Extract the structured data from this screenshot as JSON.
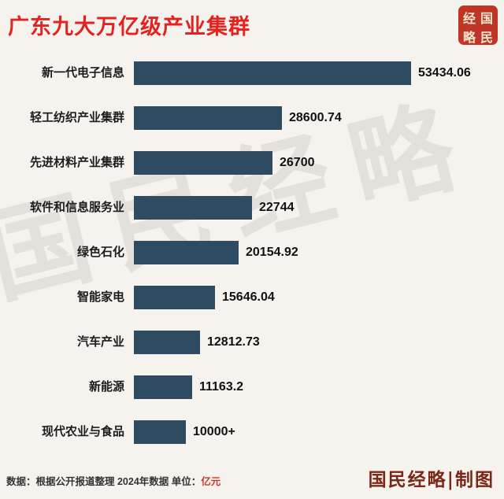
{
  "page": {
    "title": "广东九大万亿级产业集群",
    "watermark": "国民经略",
    "seal_chars": [
      "经",
      "国",
      "略",
      "民"
    ],
    "footnote_prefix": "数据：根据公开报道整理 2024年数据 单位：",
    "footnote_unit": "亿元",
    "credit": "国民经略|制图"
  },
  "colors": {
    "background": "#f6f3ee",
    "bar": "#2e4b61",
    "title": "#e42320",
    "seal": "#bf3626",
    "credit": "#7a2717"
  },
  "chart_data": {
    "type": "bar",
    "orientation": "horizontal",
    "title": "广东九大万亿级产业集群",
    "unit": "亿元",
    "categories": [
      "新一代电子信息",
      "轻工纺织产业集群",
      "先进材料产业集群",
      "软件和信息服务业",
      "绿色石化",
      "智能家电",
      "汽车产业",
      "新能源",
      "现代农业与食品"
    ],
    "values": [
      53434.06,
      28600.74,
      26700,
      22744,
      20154.92,
      15646.04,
      12812.73,
      11163.2,
      10000
    ],
    "value_labels": [
      "53434.06",
      "28600.74",
      "26700",
      "22744",
      "20154.92",
      "15646.04",
      "12812.73",
      "11163.2",
      "10000+"
    ],
    "max_value": 53434.06,
    "xlim": [
      0,
      53434.06
    ],
    "grid": false,
    "legend": false,
    "source_note": "数据：根据公开报道整理 2024年数据",
    "year": "2024"
  }
}
